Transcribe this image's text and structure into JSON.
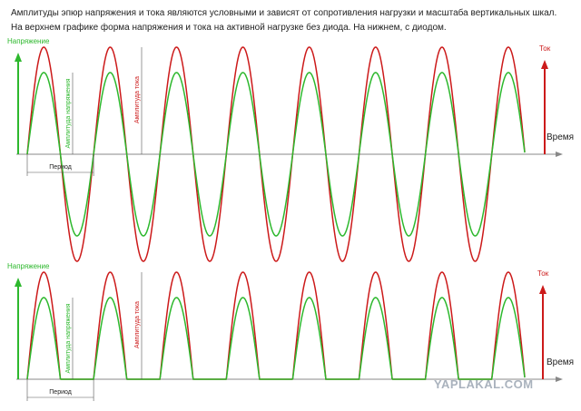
{
  "header": {
    "lines": [
      "Амплитуды эпюр напряжения и тока являются условными и зависят от сопротивления нагрузки и масштаба вертикальных шкал.",
      "На верхнем графике форма напряжения и тока на активной нагрузке без диода. На нижнем, с диодом."
    ]
  },
  "panels": [
    {
      "voltage_label": "Напряжение",
      "current_label": "Ток",
      "time_label": "Время",
      "voltage_amplitude_label": "Амплитуда напряжения",
      "current_amplitude_label": "Амплитуда тока",
      "period_label": "Период"
    },
    {
      "voltage_label": "Напряжение",
      "current_label": "Ток",
      "time_label": "Время",
      "voltage_amplitude_label": "Амплитуда напряжения",
      "current_amplitude_label": "Амплитуда тока",
      "period_label": "Период"
    }
  ],
  "watermark": "YAPLAKAL.COM"
}
